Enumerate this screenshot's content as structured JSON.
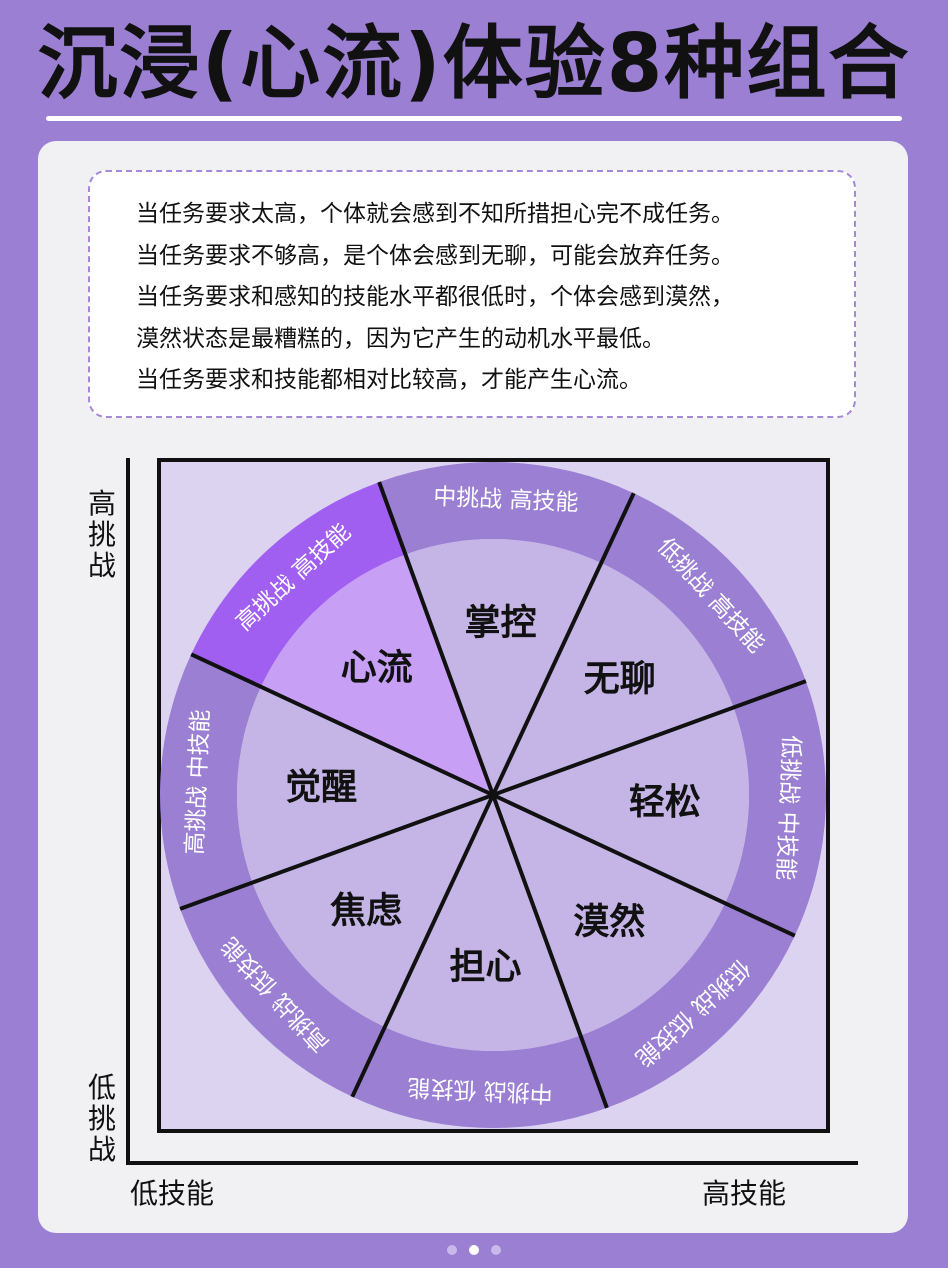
{
  "title": "沉浸(心流)体验8种组合",
  "description": [
    "当任务要求太高，个体就会感到不知所措担心完不成任务。",
    "当任务要求不够高，是个体会感到无聊，可能会放弃任务。",
    "当任务要求和感知的技能水平都很低时，个体会感到漠然，",
    "漠然状态是最糟糕的，因为它产生的动机水平最低。",
    "当任务要求和技能都相对比较高，才能产生心流。"
  ],
  "axes": {
    "y_top": "高挑战",
    "y_bottom": "低挑战",
    "x_left": "低技能",
    "x_right": "高技能"
  },
  "colors": {
    "background": "#9a7fd3",
    "square_fill": "#dcd3f0",
    "ring": "#9a7fd3",
    "inner": "#c4b5e6",
    "highlight_ring": "#a05ff0",
    "highlight_inner": "#c79ff5"
  },
  "segments": [
    {
      "state": "觉醒",
      "combo": "高挑战 中技能",
      "highlight": false
    },
    {
      "state": "心流",
      "combo": "高挑战 高技能",
      "highlight": true
    },
    {
      "state": "掌控",
      "combo": "中挑战 高技能",
      "highlight": false
    },
    {
      "state": "无聊",
      "combo": "低挑战 高技能",
      "highlight": false
    },
    {
      "state": "轻松",
      "combo": "低挑战 中技能",
      "highlight": false
    },
    {
      "state": "漠然",
      "combo": "低挑战 低技能",
      "highlight": false
    },
    {
      "state": "担心",
      "combo": "中挑战 低技能",
      "highlight": false
    },
    {
      "state": "焦虑",
      "combo": "高挑战 低技能",
      "highlight": false
    }
  ],
  "pagination": {
    "count": 3,
    "active": 1
  }
}
